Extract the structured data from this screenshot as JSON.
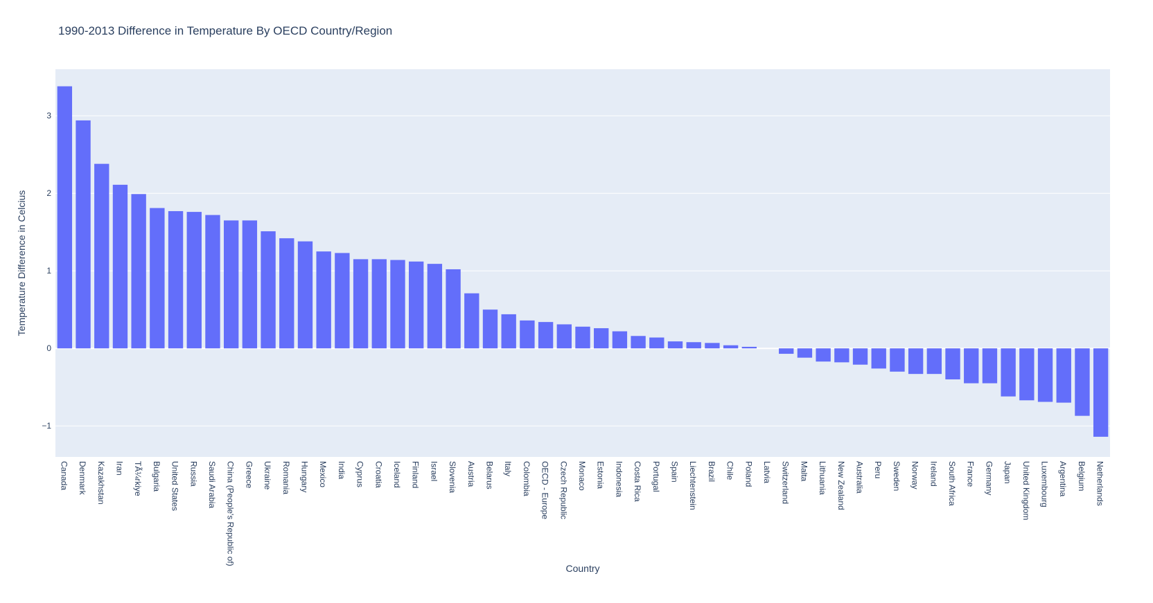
{
  "colors": {
    "bar": "#636efa",
    "plot_bg": "#e5ecf6",
    "grid": "#ffffff",
    "text": "#2a3f5f",
    "zero_line": "#ffffff"
  },
  "chart_data": {
    "type": "bar",
    "title": "1990-2013 Difference in Temperature By OECD Country/Region",
    "xlabel": "Country",
    "ylabel": "Temperature Difference in Celcius",
    "ylim": [
      -1.4,
      3.6
    ],
    "yticks": [
      -1,
      0,
      1,
      2,
      3
    ],
    "ytick_labels": [
      "−1",
      "0",
      "1",
      "2",
      "3"
    ],
    "grid": true,
    "categories": [
      "Canada",
      "Denmark",
      "Kazakhstan",
      "Iran",
      "TÃ¼rkiye",
      "Bulgaria",
      "United States",
      "Russia",
      "Saudi Arabia",
      "China (People's Republic of)",
      "Greece",
      "Ukraine",
      "Romania",
      "Hungary",
      "Mexico",
      "India",
      "Cyprus",
      "Croatia",
      "Iceland",
      "Finland",
      "Israel",
      "Slovenia",
      "Austria",
      "Belarus",
      "Italy",
      "Colombia",
      "OECD - Europe",
      "Czech Republic",
      "Monaco",
      "Estonia",
      "Indonesia",
      "Costa Rica",
      "Portugal",
      "Spain",
      "Liechtenstein",
      "Brazil",
      "Chile",
      "Poland",
      "Latvia",
      "Switzerland",
      "Malta",
      "Lithuania",
      "New Zealand",
      "Australia",
      "Peru",
      "Sweden",
      "Norway",
      "Ireland",
      "South Africa",
      "France",
      "Germany",
      "Japan",
      "United Kingdom",
      "Luxembourg",
      "Argentina",
      "Belgium",
      "Netherlands"
    ],
    "values": [
      3.38,
      2.94,
      2.38,
      2.11,
      1.99,
      1.81,
      1.77,
      1.76,
      1.72,
      1.65,
      1.65,
      1.51,
      1.42,
      1.38,
      1.25,
      1.23,
      1.15,
      1.15,
      1.14,
      1.12,
      1.09,
      1.02,
      0.71,
      0.5,
      0.44,
      0.36,
      0.34,
      0.31,
      0.28,
      0.26,
      0.22,
      0.16,
      0.14,
      0.09,
      0.08,
      0.07,
      0.04,
      0.02,
      0.0,
      -0.07,
      -0.12,
      -0.17,
      -0.18,
      -0.21,
      -0.26,
      -0.3,
      -0.33,
      -0.33,
      -0.4,
      -0.45,
      -0.45,
      -0.62,
      -0.67,
      -0.69,
      -0.7,
      -0.87,
      -1.14
    ]
  }
}
